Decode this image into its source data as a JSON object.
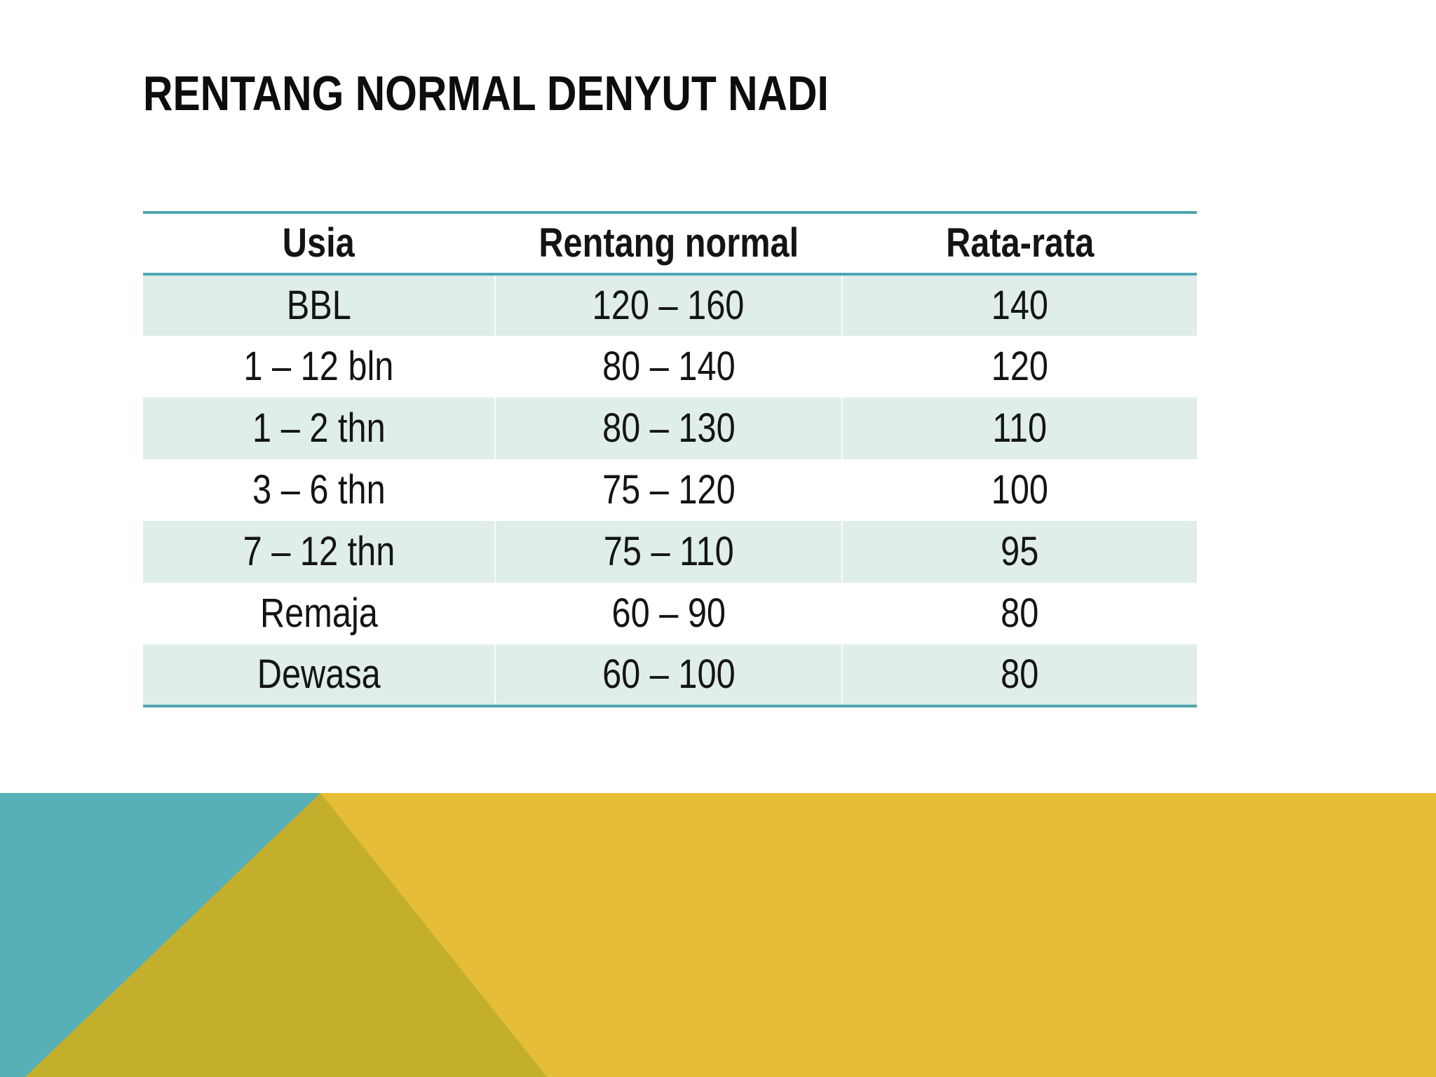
{
  "slide": {
    "title": "RENTANG NORMAL DENYUT NADI"
  },
  "table": {
    "columns": [
      "Usia",
      "Rentang normal",
      "Rata-rata"
    ],
    "rows": [
      [
        "BBL",
        "120 – 160",
        "140"
      ],
      [
        "1 – 12 bln",
        "80 – 140",
        "120"
      ],
      [
        "1 – 2 thn",
        "80 – 130",
        "110"
      ],
      [
        "3 – 6 thn",
        "75 – 120",
        "100"
      ],
      [
        "7 – 12 thn",
        "75 – 110",
        "95"
      ],
      [
        "Remaja",
        "60 – 90",
        "80"
      ],
      [
        "Dewasa",
        "60 – 100",
        "80"
      ]
    ]
  },
  "colors": {
    "accent": "#4EA6B0",
    "row-shaded": "#DFEDEB",
    "band-teal": "#57AFB8",
    "band-yellow": "#E5BD38",
    "band-olive": "#C3AF2B",
    "text": "#141414"
  }
}
